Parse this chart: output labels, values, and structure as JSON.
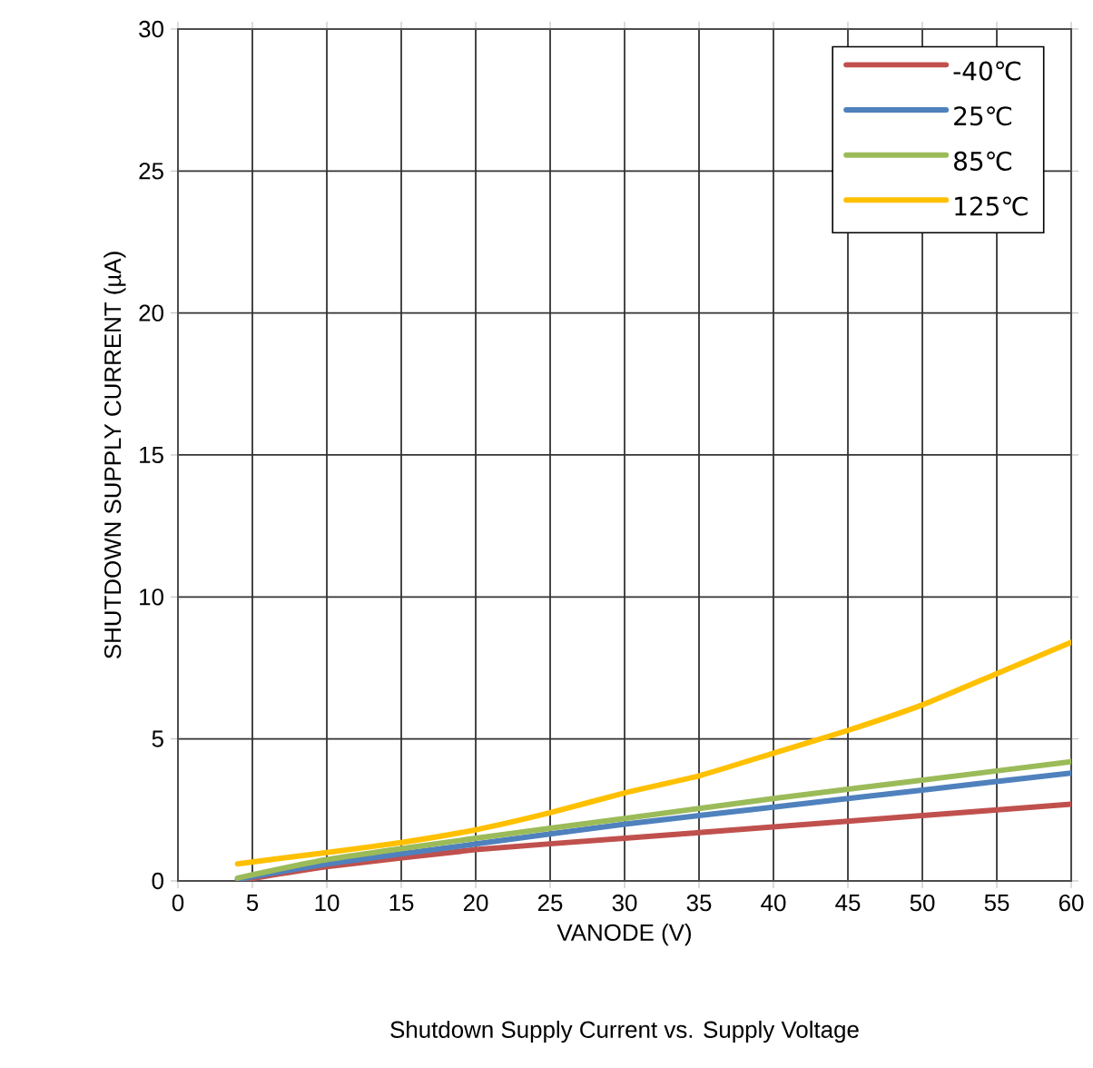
{
  "chart_data": {
    "type": "line",
    "title": "Shutdown Supply Current vs. Supply Voltage",
    "xlabel": "VANODE (V)",
    "ylabel": "SHUTDOWN SUPPLY CURRENT (µA)",
    "xlim": [
      0,
      60
    ],
    "ylim": [
      0,
      30
    ],
    "xticks": [
      0,
      5,
      10,
      15,
      20,
      25,
      30,
      35,
      40,
      45,
      50,
      55,
      60
    ],
    "yticks": [
      0,
      5,
      10,
      15,
      20,
      25,
      30
    ],
    "grid": true,
    "legend": "top right",
    "marker": "none",
    "line_style": "solid",
    "series": [
      {
        "name": "-40℃",
        "color": "#c0504d",
        "x": [
          4,
          10,
          20,
          30,
          40,
          50,
          60
        ],
        "values": [
          0,
          0.5,
          1.1,
          1.5,
          1.9,
          2.3,
          2.7
        ]
      },
      {
        "name": "25℃",
        "color": "#4f81bd",
        "x": [
          4,
          10,
          20,
          30,
          40,
          50,
          60
        ],
        "values": [
          0.05,
          0.6,
          1.3,
          2.0,
          2.6,
          3.2,
          3.8
        ]
      },
      {
        "name": "85℃",
        "color": "#9bbb59",
        "x": [
          4,
          10,
          20,
          30,
          40,
          50,
          60
        ],
        "values": [
          0.1,
          0.75,
          1.5,
          2.2,
          2.9,
          3.55,
          4.2
        ]
      },
      {
        "name": "125℃",
        "color": "#ffc000",
        "x": [
          4,
          10,
          15,
          20,
          25,
          30,
          35,
          40,
          45,
          50,
          55,
          60
        ],
        "values": [
          0.6,
          1.0,
          1.35,
          1.8,
          2.4,
          3.1,
          3.7,
          4.5,
          5.3,
          6.2,
          7.3,
          8.4
        ]
      }
    ]
  }
}
